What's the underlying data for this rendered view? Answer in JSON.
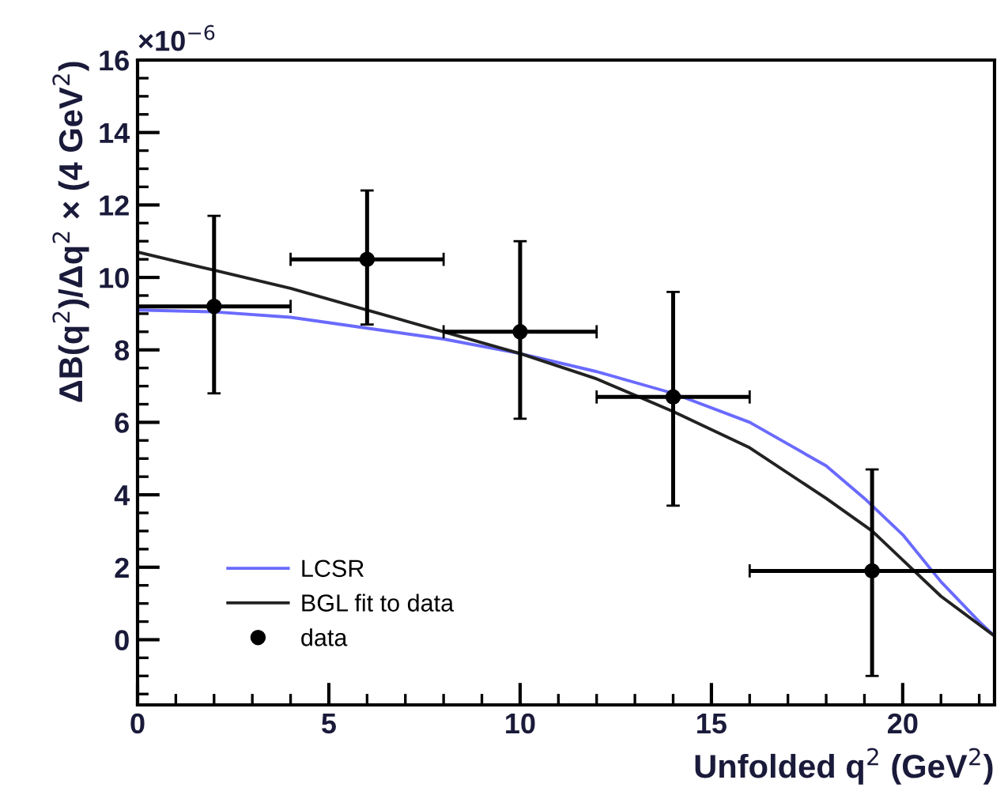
{
  "chart_data": {
    "type": "line",
    "xlabel": "Unfolded q$^{2}$ (GeV$^{2}$)",
    "ylabel": "ΔB(q$^{2}$)/Δq$^{2}$ × (4 GeV$^{2}$)",
    "annotations": [
      "×10$^{−6}$"
    ],
    "xlim": [
      0,
      22.4
    ],
    "xticks": [
      0,
      5,
      10,
      15,
      20
    ],
    "ylim": [
      -1.8,
      16
    ],
    "yticks": [
      0,
      2,
      4,
      6,
      8,
      10,
      12,
      14,
      16
    ],
    "grid": false,
    "legend": "bottom left",
    "series": [
      {
        "name": "LCSR",
        "color": "#6a6aff",
        "x": [
          0,
          2,
          4,
          6,
          8,
          10,
          12,
          14,
          16,
          17,
          18,
          19,
          20,
          21,
          22,
          22.4
        ],
        "values": [
          9.1,
          9.05,
          8.9,
          8.6,
          8.3,
          7.9,
          7.4,
          6.8,
          6.0,
          5.4,
          4.8,
          3.9,
          2.9,
          1.6,
          0.5,
          0.1
        ]
      },
      {
        "name": "BGL fit to data",
        "color": "#222222",
        "x": [
          0,
          2,
          4,
          6,
          8,
          10,
          12,
          14,
          16,
          18,
          19.2,
          20,
          21,
          22.4
        ],
        "values": [
          10.7,
          10.2,
          9.7,
          9.1,
          8.5,
          7.9,
          7.2,
          6.3,
          5.3,
          3.9,
          3.0,
          2.2,
          1.2,
          0.1
        ]
      },
      {
        "name": "data",
        "type": "scatter",
        "color": "#000000",
        "marker": "circle",
        "x": [
          2,
          6,
          10,
          14,
          19.2
        ],
        "values": [
          9.2,
          10.5,
          8.5,
          6.7,
          1.9
        ],
        "errors": [
          [
            6.8,
            11.7
          ],
          [
            8.7,
            12.4
          ],
          [
            6.1,
            11.0
          ],
          [
            3.7,
            9.6
          ],
          [
            -1.0,
            4.7
          ]
        ],
        "xerrors": [
          [
            0,
            4
          ],
          [
            4,
            8
          ],
          [
            8,
            12
          ],
          [
            12,
            16
          ],
          [
            16,
            22.4
          ]
        ]
      }
    ]
  }
}
